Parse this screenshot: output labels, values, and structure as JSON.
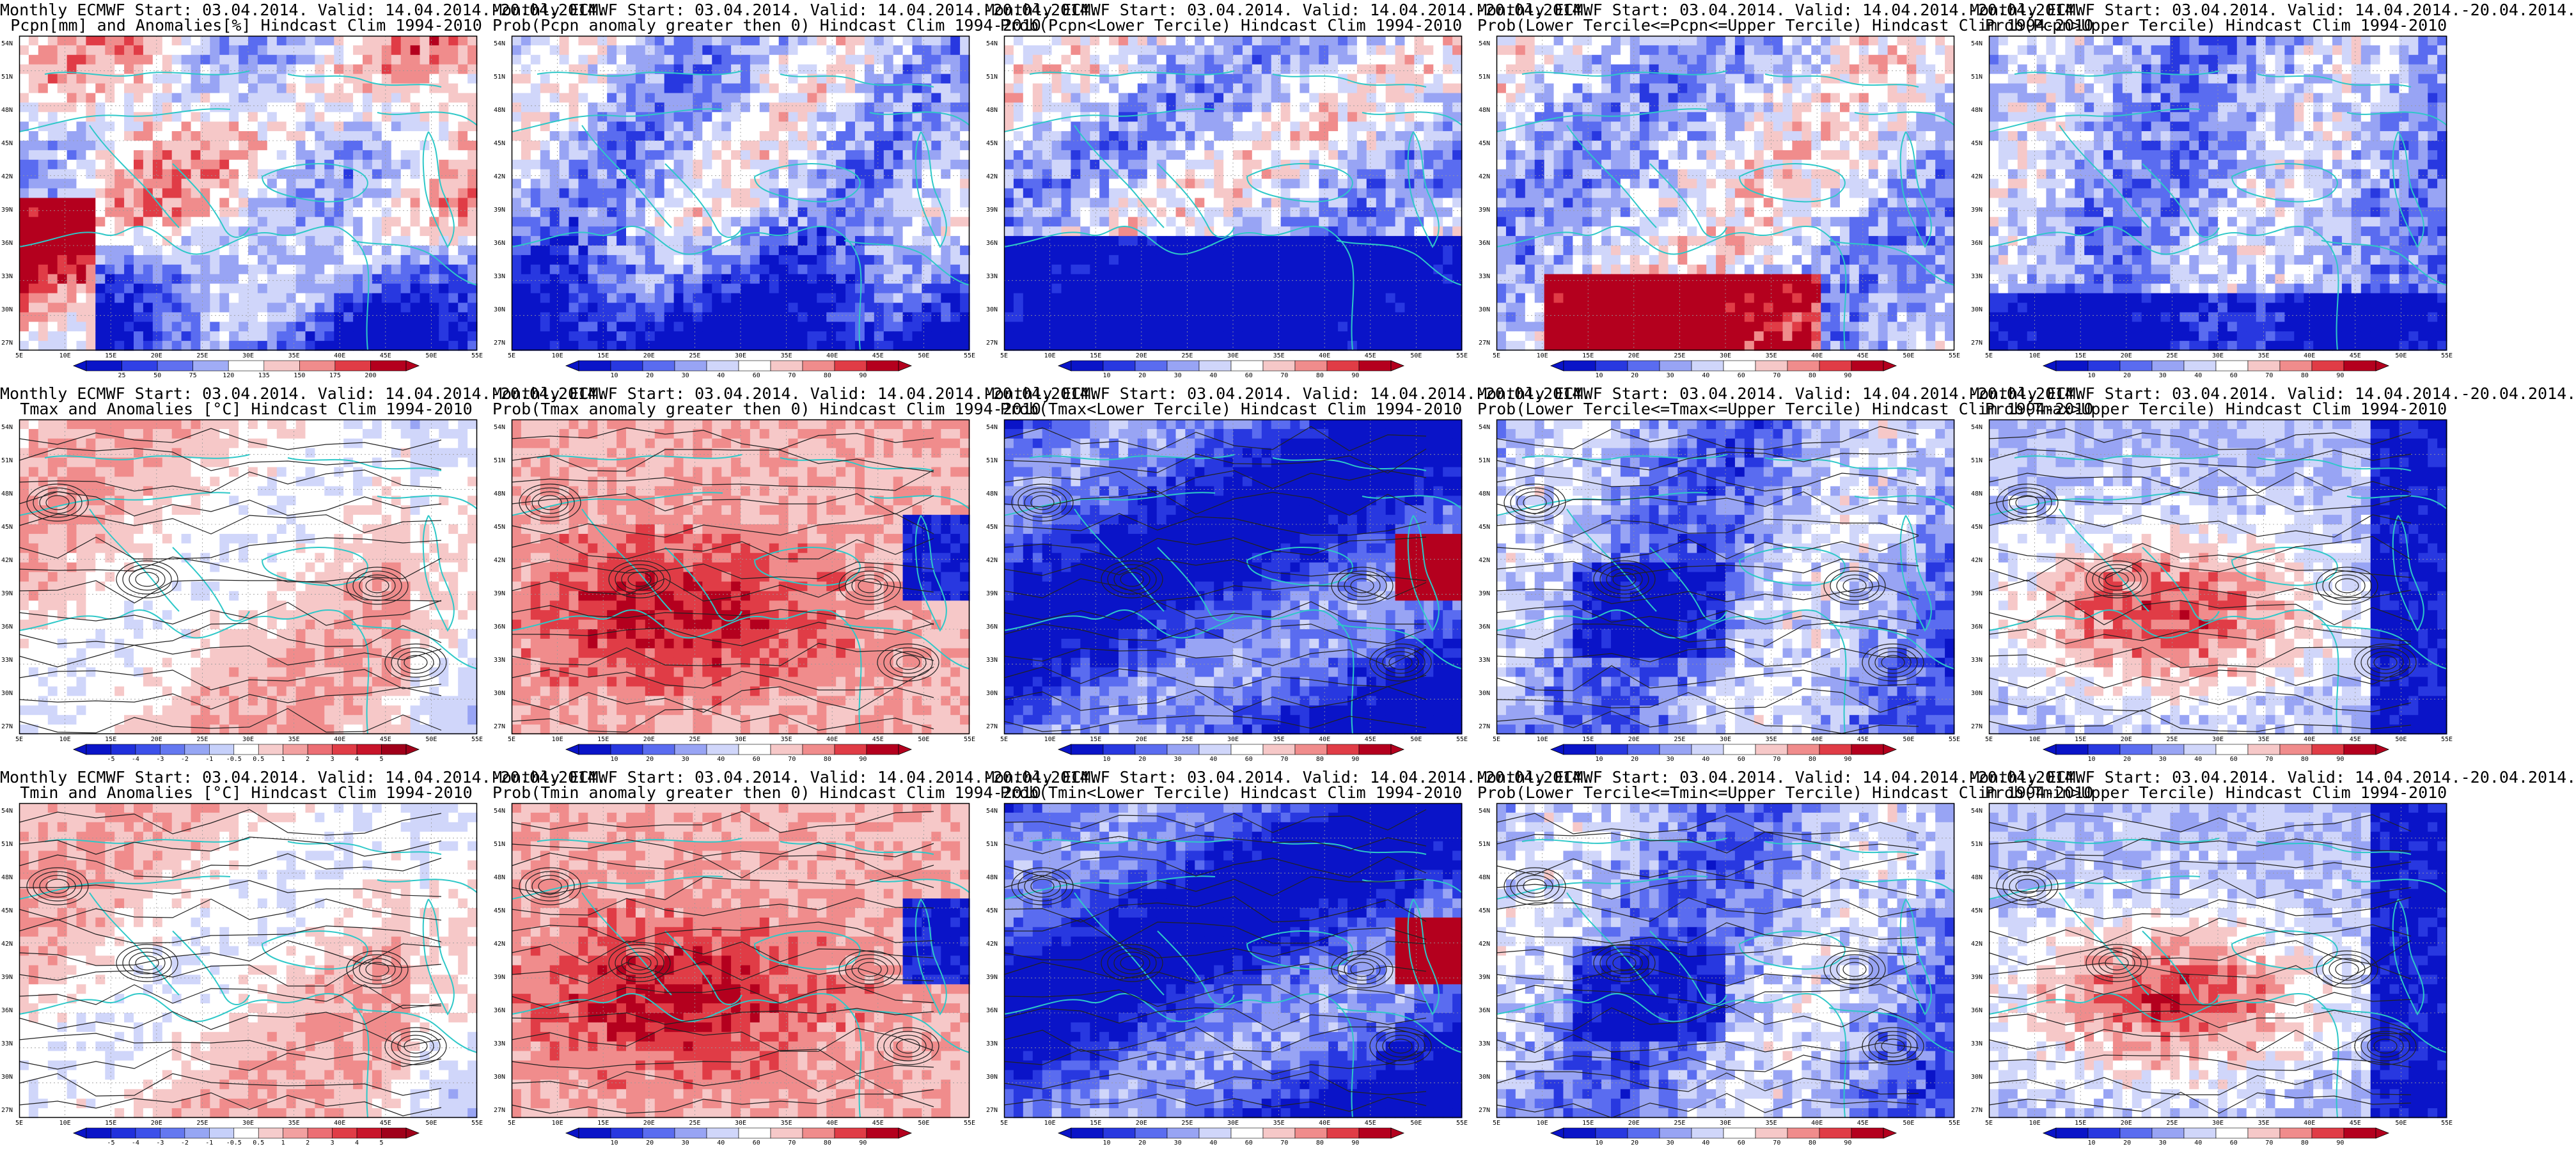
{
  "figure": {
    "lat_labels": [
      "54N",
      "51N",
      "48N",
      "45N",
      "42N",
      "39N",
      "36N",
      "33N",
      "30N",
      "27N"
    ],
    "lon_labels": [
      "5E",
      "10E",
      "15E",
      "20E",
      "25E",
      "30E",
      "35E",
      "40E",
      "45E",
      "50E",
      "55E"
    ],
    "colors": {
      "coast": "#2ec8c8",
      "contour": "#222222",
      "dark_blue": "#0a14c8",
      "mid_blue": "#4b5ef0",
      "light_blue": "#b4bef6",
      "white": "#ffffff",
      "light_red": "#f6bcbc",
      "mid_red": "#f0505a",
      "dark_red": "#b4001e"
    }
  },
  "panels": [
    {
      "row": 0,
      "col": 0,
      "title1": "Monthly ECMWF Start: 03.04.2014. Valid: 14.04.2014.-20.04.2014.",
      "title2": "Pcpn[mm] and Anomalies[%]",
      "title_tail": "Hindcast Clim 1994-2010",
      "pattern": "pcpn_anom",
      "colorbar": "anom_pct",
      "contours": false
    },
    {
      "row": 0,
      "col": 1,
      "title1": "Monthly ECMWF Start: 03.04.2014. Valid: 14.04.2014.-20.04.2014.",
      "title2": "Prob(Pcpn anomaly greater then 0) Hindcast Clim 1994-2010",
      "pattern": "pcpn_pos",
      "colorbar": "prob",
      "contours": false
    },
    {
      "row": 0,
      "col": 2,
      "title1": "Monthly ECMWF Start: 03.04.2014. Valid: 14.04.2014.-20.04.2014.",
      "title2": "Prob(Pcpn<Lower Tercile) Hindcast Clim 1994-2010",
      "pattern": "pcpn_low",
      "colorbar": "prob",
      "contours": false
    },
    {
      "row": 0,
      "col": 3,
      "title1": "Monthly ECMWF Start: 03.04.2014. Valid: 14.04.2014.-20.04.2014.",
      "title2": "Prob(Lower Tercile<=Pcpn<=Upper Tercile) Hindcast Clim 1994-2010",
      "pattern": "pcpn_mid",
      "colorbar": "prob",
      "contours": false
    },
    {
      "row": 0,
      "col": 4,
      "title1": "Monthly ECMWF Start: 03.04.2014. Valid: 14.04.2014.-20.04.2014.",
      "title2": "Prob(Pcpn>Upper Tercile) Hindcast Clim 1994-2010",
      "pattern": "pcpn_up",
      "colorbar": "prob",
      "contours": false
    },
    {
      "row": 1,
      "col": 0,
      "title1": "Monthly ECMWF Start: 03.04.2014. Valid: 14.04.2014.-20.04.2014.",
      "title2": "Tmax and Anomalies [°C] Hindcast Clim 1994-2010",
      "pattern": "t_anom",
      "colorbar": "anom_c",
      "contours": true
    },
    {
      "row": 1,
      "col": 1,
      "title1": "Monthly ECMWF Start: 03.04.2014. Valid: 14.04.2014.-20.04.2014.",
      "title2": "Prob(Tmax anomaly greater then 0) Hindcast Clim 1994-2010",
      "pattern": "t_pos",
      "colorbar": "prob",
      "contours": true
    },
    {
      "row": 1,
      "col": 2,
      "title1": "Monthly ECMWF Start: 03.04.2014. Valid: 14.04.2014.-20.04.2014.",
      "title2": "Prob(Tmax<Lower Tercile) Hindcast Clim 1994-2010",
      "pattern": "t_low",
      "colorbar": "prob",
      "contours": true
    },
    {
      "row": 1,
      "col": 3,
      "title1": "Monthly ECMWF Start: 03.04.2014. Valid: 14.04.2014.-20.04.2014.",
      "title2": "Prob(Lower Tercile<=Tmax<=Upper Tercile) Hindcast Clim 1994-2010",
      "pattern": "t_mid",
      "colorbar": "prob",
      "contours": true
    },
    {
      "row": 1,
      "col": 4,
      "title1": "Monthly ECMWF Start: 03.04.2014. Valid: 14.04.2014.-20.04.2014.",
      "title2": "Prob(Tmax>Upper Tercile) Hindcast Clim 1994-2010",
      "pattern": "t_up",
      "colorbar": "prob",
      "contours": true
    },
    {
      "row": 2,
      "col": 0,
      "title1": "Monthly ECMWF Start: 03.04.2014. Valid: 14.04.2014.-20.04.2014.",
      "title2": "Tmin and Anomalies [°C] Hindcast Clim 1994-2010",
      "pattern": "t_anom",
      "colorbar": "anom_c",
      "contours": true
    },
    {
      "row": 2,
      "col": 1,
      "title1": "Monthly ECMWF Start: 03.04.2014. Valid: 14.04.2014.-20.04.2014.",
      "title2": "Prob(Tmin anomaly greater then 0) Hindcast Clim 1994-2010",
      "pattern": "t_pos",
      "colorbar": "prob",
      "contours": true
    },
    {
      "row": 2,
      "col": 2,
      "title1": "Monthly ECMWF Start: 03.04.2014. Valid: 14.04.2014.-20.04.2014.",
      "title2": "Prob(Tmin<Lower Tercile) Hindcast Clim 1994-2010",
      "pattern": "t_low",
      "colorbar": "prob",
      "contours": true
    },
    {
      "row": 2,
      "col": 3,
      "title1": "Monthly ECMWF Start: 03.04.2014. Valid: 14.04.2014.-20.04.2014.",
      "title2": "Prob(Lower Tercile<=Tmin<=Upper Tercile) Hindcast Clim 1994-2010",
      "pattern": "t_mid",
      "colorbar": "prob",
      "contours": true
    },
    {
      "row": 2,
      "col": 4,
      "title1": "Monthly ECMWF Start: 03.04.2014. Valid: 14.04.2014.-20.04.2014.",
      "title2": "Prob(Tmin>Upper Tercile) Hindcast Clim 1994-2010",
      "pattern": "t_up",
      "colorbar": "prob",
      "contours": true
    }
  ],
  "colorbars": {
    "prob": {
      "ticks": [
        "10",
        "20",
        "30",
        "40",
        "60",
        "70",
        "80",
        "90"
      ],
      "colors": [
        "#0a14c8",
        "#2838e0",
        "#5a6cf0",
        "#98a4f4",
        "#d0d6fa",
        "#ffffff",
        "#f6c8c8",
        "#f08c8c",
        "#e03c46",
        "#b4001e"
      ]
    },
    "anom_c": {
      "ticks": [
        "-5",
        "-4",
        "-3",
        "-2",
        "-1",
        "-0.5",
        "0.5",
        "1",
        "2",
        "3",
        "4",
        "5"
      ],
      "colors": [
        "#0a14c8",
        "#2030dc",
        "#3c50ea",
        "#6478f0",
        "#96a6f4",
        "#c6d0fa",
        "#ffffff",
        "#f6cccc",
        "#f2a0a0",
        "#ec6e74",
        "#e03c46",
        "#c8142a",
        "#a0001a"
      ]
    },
    "anom_pct": {
      "ticks": [
        "25",
        "50",
        "75",
        "120",
        "135",
        "150",
        "175",
        "200"
      ],
      "colors": [
        "#0a14c8",
        "#3040e6",
        "#6070f0",
        "#a0acf6",
        "#ffffff",
        "#f6c8c8",
        "#f08c8c",
        "#e03c46",
        "#b4001e"
      ]
    }
  }
}
